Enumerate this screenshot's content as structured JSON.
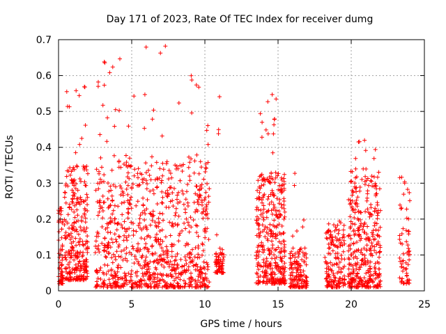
{
  "chart_data": {
    "type": "scatter",
    "title": "Day 171 of 2023, Rate Of TEC Index for receiver dumg",
    "xlabel": "GPS time / hours",
    "ylabel": "ROTI / TECUs",
    "xlim": [
      0,
      25
    ],
    "ylim": [
      0,
      0.7
    ],
    "xticks": [
      "0",
      "5",
      "10",
      "15",
      "20",
      "25"
    ],
    "yticks": [
      "0",
      "0.1",
      "0.2",
      "0.3",
      "0.4",
      "0.5",
      "0.6",
      "0.7"
    ],
    "grid": true,
    "marker": "plus",
    "color": "#ff0000",
    "clusters": [
      {
        "x": [
          0.0,
          0.3
        ],
        "y": [
          0.02,
          0.23
        ],
        "peak_y": 0.23,
        "density": 0.4
      },
      {
        "x": [
          0.4,
          2.0
        ],
        "y": [
          0.03,
          0.35
        ],
        "peak_y": 0.57,
        "density": 1.0
      },
      {
        "x": [
          2.5,
          10.3
        ],
        "y": [
          0.01,
          0.38
        ],
        "peak_y": 0.68,
        "density": 3.0
      },
      {
        "x": [
          10.7,
          11.3
        ],
        "y": [
          0.05,
          0.12
        ],
        "peak_y": 0.54,
        "density": 0.3
      },
      {
        "x": [
          13.5,
          15.5
        ],
        "y": [
          0.02,
          0.33
        ],
        "peak_y": 0.55,
        "density": 1.2
      },
      {
        "x": [
          15.8,
          17.0
        ],
        "y": [
          0.01,
          0.12
        ],
        "peak_y": 0.33,
        "density": 0.6
      },
      {
        "x": [
          18.2,
          19.6
        ],
        "y": [
          0.01,
          0.18
        ],
        "peak_y": 0.2,
        "density": 0.6
      },
      {
        "x": [
          19.8,
          22.0
        ],
        "y": [
          0.01,
          0.32
        ],
        "peak_y": 0.42,
        "density": 1.2
      },
      {
        "x": [
          23.3,
          24.0
        ],
        "y": [
          0.02,
          0.28
        ],
        "peak_y": 0.35,
        "density": 0.5
      }
    ],
    "notable_points": [
      {
        "x": 7.3,
        "y": 0.682
      },
      {
        "x": 1.8,
        "y": 0.568
      },
      {
        "x": 11.0,
        "y": 0.541
      },
      {
        "x": 14.6,
        "y": 0.547
      },
      {
        "x": 3.9,
        "y": 0.505
      },
      {
        "x": 5.9,
        "y": 0.547
      },
      {
        "x": 9.1,
        "y": 0.496
      },
      {
        "x": 20.5,
        "y": 0.415
      }
    ]
  }
}
